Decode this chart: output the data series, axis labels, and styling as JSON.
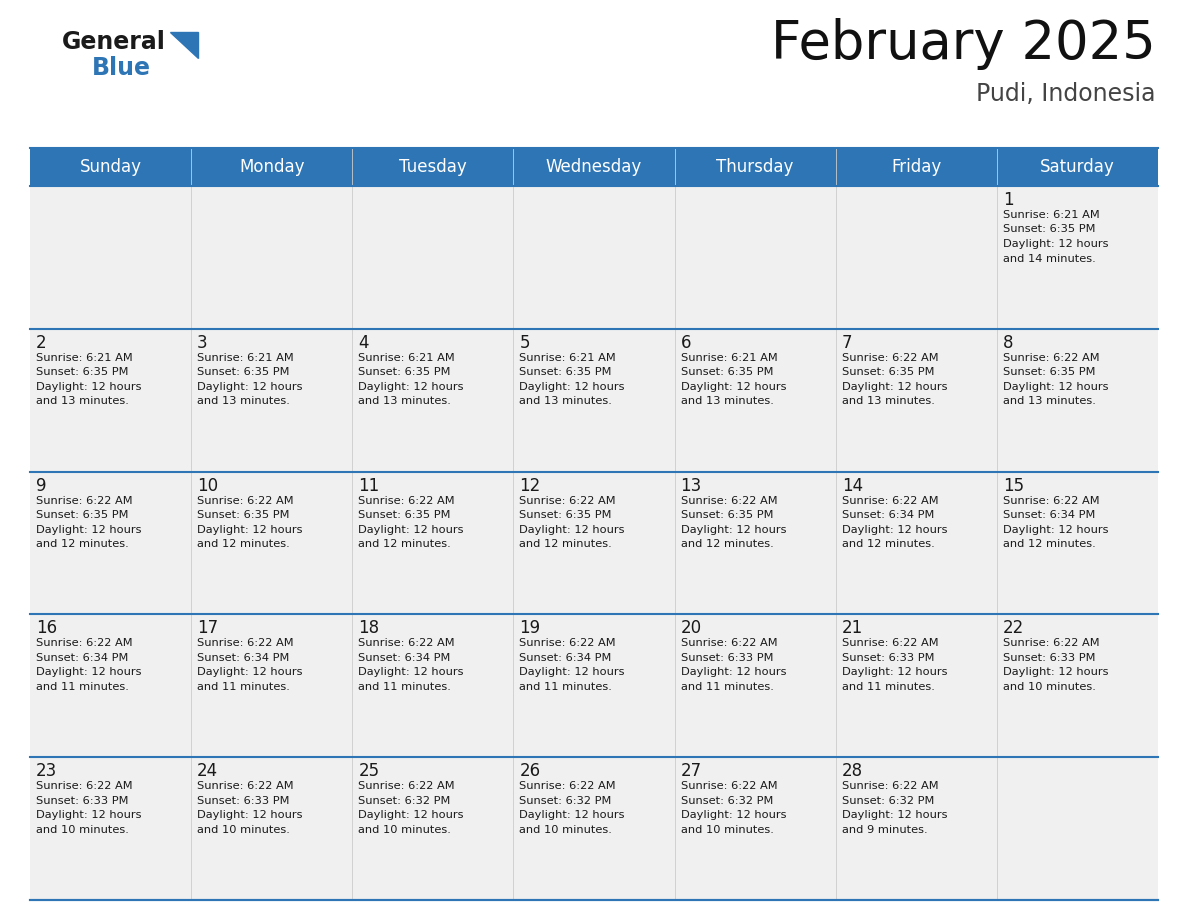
{
  "title": "February 2025",
  "subtitle": "Pudi, Indonesia",
  "header_color": "#2E75B6",
  "header_text_color": "#FFFFFF",
  "background_color": "#FFFFFF",
  "alt_row_color": "#F0F0F0",
  "border_color": "#2E75B6",
  "days_of_week": [
    "Sunday",
    "Monday",
    "Tuesday",
    "Wednesday",
    "Thursday",
    "Friday",
    "Saturday"
  ],
  "title_fontsize": 38,
  "subtitle_fontsize": 17,
  "day_num_fontsize": 12,
  "cell_text_fontsize": 8.2,
  "header_fontsize": 12,
  "calendar_data": {
    "1": {
      "sunrise": "6:21 AM",
      "sunset": "6:35 PM",
      "daylight": "12 hours and 14 minutes."
    },
    "2": {
      "sunrise": "6:21 AM",
      "sunset": "6:35 PM",
      "daylight": "12 hours and 13 minutes."
    },
    "3": {
      "sunrise": "6:21 AM",
      "sunset": "6:35 PM",
      "daylight": "12 hours and 13 minutes."
    },
    "4": {
      "sunrise": "6:21 AM",
      "sunset": "6:35 PM",
      "daylight": "12 hours and 13 minutes."
    },
    "5": {
      "sunrise": "6:21 AM",
      "sunset": "6:35 PM",
      "daylight": "12 hours and 13 minutes."
    },
    "6": {
      "sunrise": "6:21 AM",
      "sunset": "6:35 PM",
      "daylight": "12 hours and 13 minutes."
    },
    "7": {
      "sunrise": "6:22 AM",
      "sunset": "6:35 PM",
      "daylight": "12 hours and 13 minutes."
    },
    "8": {
      "sunrise": "6:22 AM",
      "sunset": "6:35 PM",
      "daylight": "12 hours and 13 minutes."
    },
    "9": {
      "sunrise": "6:22 AM",
      "sunset": "6:35 PM",
      "daylight": "12 hours and 12 minutes."
    },
    "10": {
      "sunrise": "6:22 AM",
      "sunset": "6:35 PM",
      "daylight": "12 hours and 12 minutes."
    },
    "11": {
      "sunrise": "6:22 AM",
      "sunset": "6:35 PM",
      "daylight": "12 hours and 12 minutes."
    },
    "12": {
      "sunrise": "6:22 AM",
      "sunset": "6:35 PM",
      "daylight": "12 hours and 12 minutes."
    },
    "13": {
      "sunrise": "6:22 AM",
      "sunset": "6:35 PM",
      "daylight": "12 hours and 12 minutes."
    },
    "14": {
      "sunrise": "6:22 AM",
      "sunset": "6:34 PM",
      "daylight": "12 hours and 12 minutes."
    },
    "15": {
      "sunrise": "6:22 AM",
      "sunset": "6:34 PM",
      "daylight": "12 hours and 12 minutes."
    },
    "16": {
      "sunrise": "6:22 AM",
      "sunset": "6:34 PM",
      "daylight": "12 hours and 11 minutes."
    },
    "17": {
      "sunrise": "6:22 AM",
      "sunset": "6:34 PM",
      "daylight": "12 hours and 11 minutes."
    },
    "18": {
      "sunrise": "6:22 AM",
      "sunset": "6:34 PM",
      "daylight": "12 hours and 11 minutes."
    },
    "19": {
      "sunrise": "6:22 AM",
      "sunset": "6:34 PM",
      "daylight": "12 hours and 11 minutes."
    },
    "20": {
      "sunrise": "6:22 AM",
      "sunset": "6:33 PM",
      "daylight": "12 hours and 11 minutes."
    },
    "21": {
      "sunrise": "6:22 AM",
      "sunset": "6:33 PM",
      "daylight": "12 hours and 11 minutes."
    },
    "22": {
      "sunrise": "6:22 AM",
      "sunset": "6:33 PM",
      "daylight": "12 hours and 10 minutes."
    },
    "23": {
      "sunrise": "6:22 AM",
      "sunset": "6:33 PM",
      "daylight": "12 hours and 10 minutes."
    },
    "24": {
      "sunrise": "6:22 AM",
      "sunset": "6:33 PM",
      "daylight": "12 hours and 10 minutes."
    },
    "25": {
      "sunrise": "6:22 AM",
      "sunset": "6:32 PM",
      "daylight": "12 hours and 10 minutes."
    },
    "26": {
      "sunrise": "6:22 AM",
      "sunset": "6:32 PM",
      "daylight": "12 hours and 10 minutes."
    },
    "27": {
      "sunrise": "6:22 AM",
      "sunset": "6:32 PM",
      "daylight": "12 hours and 10 minutes."
    },
    "28": {
      "sunrise": "6:22 AM",
      "sunset": "6:32 PM",
      "daylight": "12 hours and 9 minutes."
    }
  },
  "week_layout": [
    [
      null,
      null,
      null,
      null,
      null,
      null,
      1
    ],
    [
      2,
      3,
      4,
      5,
      6,
      7,
      8
    ],
    [
      9,
      10,
      11,
      12,
      13,
      14,
      15
    ],
    [
      16,
      17,
      18,
      19,
      20,
      21,
      22
    ],
    [
      23,
      24,
      25,
      26,
      27,
      28,
      null
    ]
  ]
}
